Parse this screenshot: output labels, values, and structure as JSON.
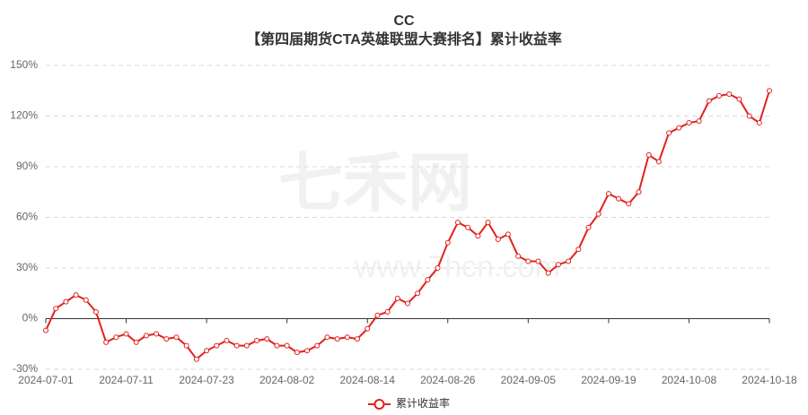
{
  "chart_data": {
    "type": "line",
    "title": "CC",
    "subtitle": "【第四届期货CTA英雄联盟大赛排名】累计收益率",
    "watermark": "七禾网",
    "watermark_url": "www.7hcn.com",
    "categories": [
      "2024-07-01",
      null,
      null,
      null,
      null,
      null,
      null,
      null,
      "2024-07-11",
      null,
      null,
      null,
      null,
      null,
      null,
      null,
      "2024-07-23",
      null,
      null,
      null,
      null,
      null,
      null,
      null,
      "2024-08-02",
      null,
      null,
      null,
      null,
      null,
      null,
      null,
      "2024-08-14",
      null,
      null,
      null,
      null,
      null,
      null,
      null,
      "2024-08-26",
      null,
      null,
      null,
      null,
      null,
      null,
      null,
      "2024-09-05",
      null,
      null,
      null,
      null,
      null,
      null,
      null,
      "2024-09-19",
      null,
      null,
      null,
      null,
      null,
      null,
      null,
      "2024-10-08",
      null,
      null,
      null,
      null,
      null,
      null,
      null,
      "2024-10-18"
    ],
    "series": [
      {
        "name": "累计收益率",
        "color": "#e3201b",
        "values": [
          -7,
          6,
          10,
          14,
          11,
          4,
          -14,
          -11,
          -9,
          -14,
          -10,
          -9,
          -12,
          -11,
          -16,
          -24,
          -19,
          -16,
          -13,
          -16,
          -16,
          -13,
          -12,
          -16,
          -16,
          -20,
          -19,
          -16,
          -11,
          -12,
          -11,
          -12,
          -6,
          2,
          4,
          12,
          9,
          15,
          23,
          30,
          45,
          57,
          54,
          49,
          57,
          47,
          50,
          37,
          34,
          34,
          27,
          32,
          34,
          41,
          54,
          62,
          74,
          71,
          68,
          75,
          97,
          93,
          110,
          113,
          116,
          117,
          129,
          132,
          133,
          130,
          120,
          116,
          135
        ]
      }
    ],
    "ylim": [
      -30,
      150
    ],
    "yticks": [
      {
        "value": -30,
        "label": "-30%"
      },
      {
        "value": 0,
        "label": "0%"
      },
      {
        "value": 30,
        "label": "30%"
      },
      {
        "value": 60,
        "label": "60%"
      },
      {
        "value": 90,
        "label": "90%"
      },
      {
        "value": 120,
        "label": "120%"
      },
      {
        "value": 150,
        "label": "150%"
      }
    ],
    "grid": true
  }
}
